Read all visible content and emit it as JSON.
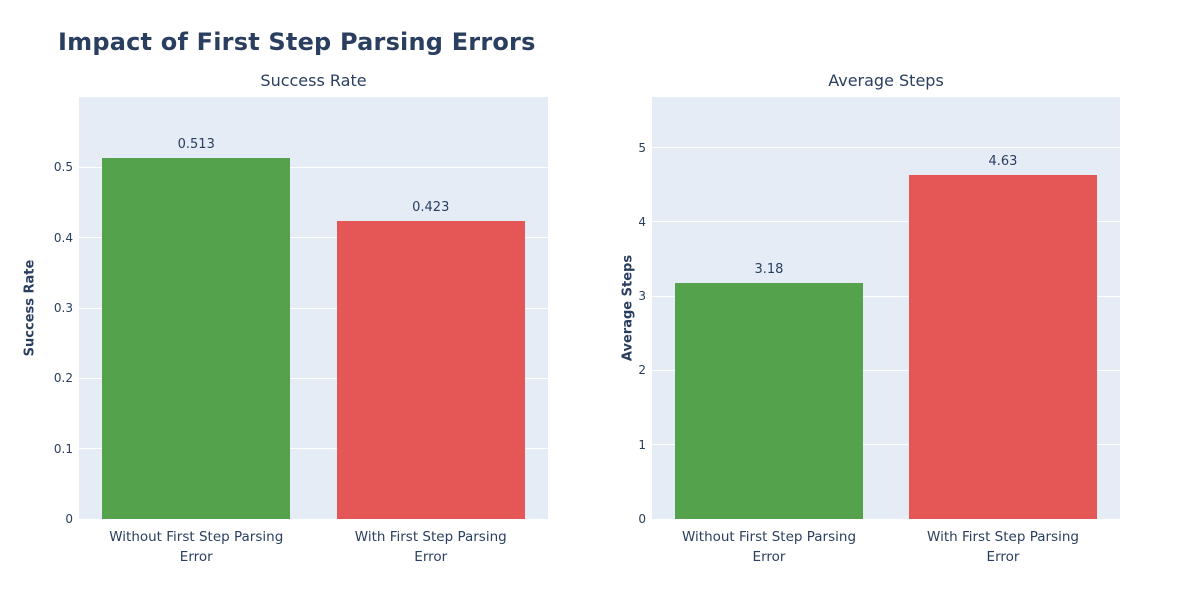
{
  "figure": {
    "title": "Impact of First Step Parsing Errors"
  },
  "colors": {
    "title_text": "#2a3f5f",
    "axis_text": "#2a3f5f",
    "plot_background": "#e5ecf6",
    "gridline": "#ffffff",
    "page_background": "#ffffff",
    "bar_green": "#54a24b",
    "bar_red": "#e45756"
  },
  "chart_data": [
    {
      "type": "bar",
      "title": "Success Rate",
      "ylabel": "Success Rate",
      "xlabel": "",
      "categories": [
        "Without First Step Parsing Error",
        "With First Step Parsing Error"
      ],
      "values": [
        0.513,
        0.423
      ],
      "data_labels": [
        "0.513",
        "0.423"
      ],
      "bar_colors": [
        "#54a24b",
        "#e45756"
      ],
      "yticks": [
        "0",
        "0.1",
        "0.2",
        "0.3",
        "0.4",
        "0.5"
      ],
      "ytick_values": [
        0,
        0.1,
        0.2,
        0.3,
        0.4,
        0.5
      ],
      "ylim": [
        0,
        0.6
      ],
      "grid": true,
      "legend": "none"
    },
    {
      "type": "bar",
      "title": "Average Steps",
      "ylabel": "Average Steps",
      "xlabel": "",
      "categories": [
        "Without First Step Parsing Error",
        "With First Step Parsing Error"
      ],
      "values": [
        3.18,
        4.63
      ],
      "data_labels": [
        "3.18",
        "4.63"
      ],
      "bar_colors": [
        "#54a24b",
        "#e45756"
      ],
      "yticks": [
        "0",
        "1",
        "2",
        "3",
        "4",
        "5"
      ],
      "ytick_values": [
        0,
        1,
        2,
        3,
        4,
        5
      ],
      "ylim": [
        0,
        5.68
      ],
      "grid": true,
      "legend": "none"
    }
  ]
}
